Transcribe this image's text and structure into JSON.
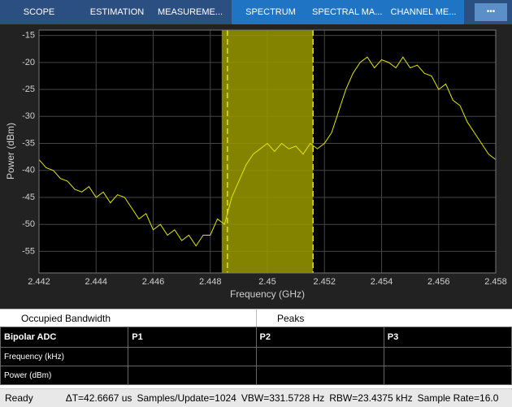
{
  "toolbar": {
    "tabs": [
      "SCOPE",
      "ESTIMATION",
      "MEASUREME...",
      "SPECTRUM",
      "SPECTRAL MA...",
      "CHANNEL ME..."
    ],
    "more": "•••"
  },
  "chart_data": {
    "type": "line",
    "xlabel": "Frequency (GHz)",
    "ylabel": "Power (dBm)",
    "x": [
      2.442,
      2.44225,
      2.4425,
      2.44275,
      2.443,
      2.44325,
      2.4435,
      2.44375,
      2.444,
      2.44425,
      2.4445,
      2.44475,
      2.445,
      2.44525,
      2.4455,
      2.44575,
      2.446,
      2.44625,
      2.4465,
      2.44675,
      2.447,
      2.44725,
      2.4475,
      2.44775,
      2.448,
      2.44825,
      2.4485,
      2.44875,
      2.449,
      2.44925,
      2.4495,
      2.44975,
      2.45,
      2.45025,
      2.4505,
      2.45075,
      2.451,
      2.45125,
      2.4515,
      2.45175,
      2.452,
      2.45225,
      2.4525,
      2.45275,
      2.453,
      2.45325,
      2.4535,
      2.45375,
      2.454,
      2.45425,
      2.4545,
      2.45475,
      2.455,
      2.45525,
      2.4555,
      2.45575,
      2.456,
      2.45625,
      2.4565,
      2.45675,
      2.457,
      2.45725,
      2.4575,
      2.45775,
      2.458
    ],
    "values": [
      -38,
      -39.5,
      -40,
      -41.5,
      -42,
      -43.5,
      -44,
      -43,
      -45,
      -44,
      -46,
      -44.5,
      -45,
      -47,
      -49,
      -48,
      -51,
      -50,
      -52,
      -51,
      -53,
      -52,
      -54,
      -52,
      -52,
      -49,
      -50,
      -45,
      -42,
      -39,
      -37,
      -36,
      -35,
      -36.5,
      -35,
      -36,
      -35.5,
      -37,
      -35,
      -36,
      -35,
      -33,
      -29,
      -25,
      -22,
      -20,
      -19,
      -21,
      -19.5,
      -20,
      -21,
      -19,
      -21,
      -20.5,
      -22,
      -22.5,
      -25,
      -24,
      -27,
      -28,
      -31,
      -33,
      -35,
      -37,
      -38
    ],
    "color": "#e6e600",
    "band": [
      2.4484,
      2.4516
    ],
    "band_color": "#9a9a00",
    "band_markers": [
      2.4486,
      2.4516
    ],
    "xlim": [
      2.442,
      2.458
    ],
    "xticks": [
      2.442,
      2.444,
      2.446,
      2.448,
      2.45,
      2.452,
      2.454,
      2.456,
      2.458
    ],
    "ylim": [
      -59,
      -14
    ],
    "yticks": [
      -15,
      -20,
      -25,
      -30,
      -35,
      -40,
      -45,
      -50,
      -55
    ],
    "grid": true
  },
  "panel": {
    "left_title": "Occupied Bandwidth",
    "right_title": "Peaks"
  },
  "table": {
    "header": [
      "Bipolar ADC",
      "P1",
      "P2",
      "P3"
    ],
    "rows": [
      "Frequency (kHz)",
      "Power (dBm)"
    ]
  },
  "status": {
    "state": "Ready",
    "fields": [
      "ΔT=42.6667 us",
      "Samples/Update=1024",
      "VBW=331.5728 Hz",
      "RBW=23.4375 kHz",
      "Sample Rate=16.0"
    ]
  }
}
